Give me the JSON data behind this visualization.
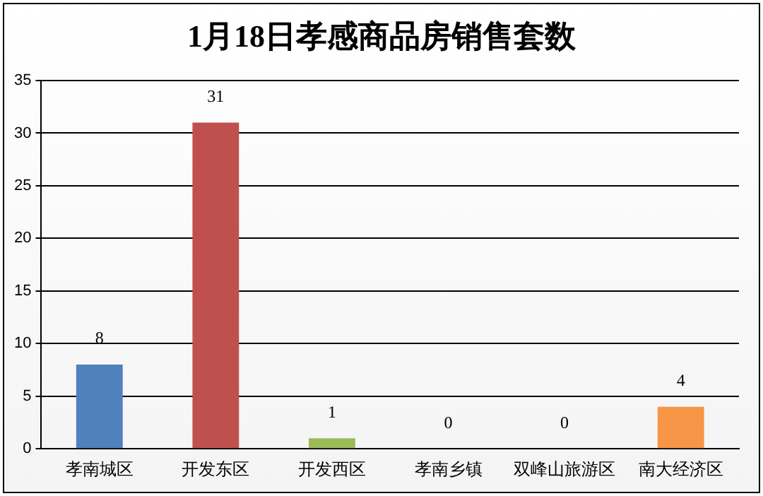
{
  "chart_data": {
    "type": "bar",
    "title": "1月18日孝感商品房销售套数",
    "categories": [
      "孝南城区",
      "开发东区",
      "开发西区",
      "孝南乡镇",
      "双峰山旅游区",
      "南大经济区"
    ],
    "values": [
      8,
      31,
      1,
      0,
      0,
      4
    ],
    "colors": [
      "#4f81bd",
      "#c0504d",
      "#9bbb59",
      "#8064a2",
      "#4bacc6",
      "#f79646"
    ],
    "ylim": [
      0,
      35
    ],
    "yticks": [
      0,
      5,
      10,
      15,
      20,
      25,
      30,
      35
    ],
    "grid": "y",
    "data_labels": true
  }
}
